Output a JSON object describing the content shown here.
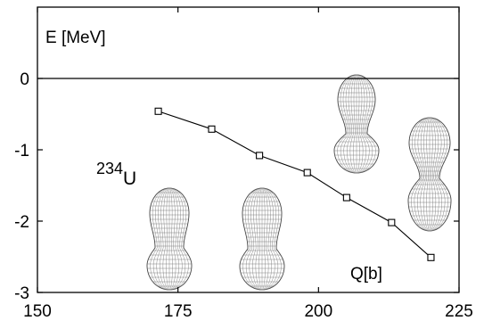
{
  "chart_data": {
    "type": "line",
    "title": "",
    "ylabel": "E  [MeV]",
    "xlabel": "Q[b]",
    "annotation": {
      "mass_number": "234",
      "element": "U"
    },
    "xlim": [
      150,
      225
    ],
    "ylim": [
      -3,
      1
    ],
    "xticks": [
      150,
      175,
      200,
      225
    ],
    "yticks": [
      -3,
      -2,
      -1,
      0
    ],
    "grid": false,
    "zero_line": true,
    "series": [
      {
        "marker": "open-square",
        "color": "#000000",
        "x": [
          171.5,
          181,
          189.5,
          198,
          205,
          213,
          220
        ],
        "y": [
          -0.46,
          -0.71,
          -1.08,
          -1.32,
          -1.67,
          -2.02,
          -2.51
        ]
      }
    ],
    "nucleus_shapes": 4
  }
}
